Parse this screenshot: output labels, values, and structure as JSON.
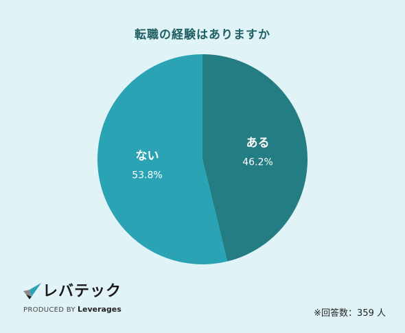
{
  "chart_data": {
    "type": "pie",
    "title": "転職の経験はありますか",
    "slices": [
      {
        "label": "ある",
        "value": 46.2,
        "value_label": "46.2%",
        "color": "#237d82"
      },
      {
        "label": "ない",
        "value": 53.8,
        "value_label": "53.8%",
        "color": "#2aa3b5"
      }
    ],
    "start_angle": "12 o'clock",
    "direction": "clockwise"
  },
  "footer": {
    "logo_text": "レバテック",
    "logo_tagline_prefix": "PRODUCED BY",
    "logo_tagline_brand": "Leverages",
    "respondents": "※回答数：359 人"
  },
  "colors": {
    "background": "#e0f3f6",
    "title": "#1f5f63"
  },
  "icons": {
    "logo_mark": "levtech-check-icon"
  }
}
